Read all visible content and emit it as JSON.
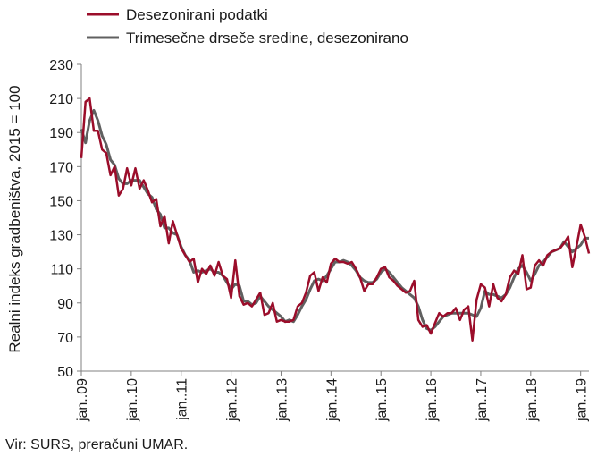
{
  "chart_data": {
    "type": "line",
    "ylabel": "Realni indeks gradbeništva, 2015 = 100",
    "ylim": [
      50,
      230
    ],
    "yticks": [
      50,
      70,
      90,
      110,
      130,
      150,
      170,
      190,
      210,
      230
    ],
    "xticks": [
      "jan..09",
      "jan..10",
      "jan..11",
      "jan..12",
      "jan..13",
      "jan..14",
      "jan..15",
      "jan..16",
      "jan..17",
      "jan..18",
      "jan..19"
    ],
    "start": "2009-01",
    "grid": false,
    "legend_position": "top-left",
    "series": [
      {
        "name": "Desezonirani podatki",
        "color": "#9b0d2a",
        "values": [
          175,
          208,
          210,
          191,
          191,
          180,
          178,
          165,
          170,
          153,
          157,
          169,
          159,
          169,
          157,
          162,
          156,
          149,
          151,
          135,
          141,
          125,
          138,
          130,
          122,
          118,
          114,
          116,
          102,
          110,
          107,
          112,
          106,
          114,
          106,
          104,
          93,
          115,
          94,
          89,
          90,
          88,
          92,
          96,
          83,
          84,
          90,
          79,
          80,
          79,
          79,
          80,
          88,
          90,
          96,
          106,
          108,
          97,
          105,
          102,
          113,
          116,
          114,
          114,
          113,
          114,
          110,
          105,
          97,
          101,
          101,
          105,
          110,
          111,
          105,
          103,
          100,
          98,
          96,
          97,
          103,
          80,
          76,
          77,
          72,
          78,
          84,
          82,
          84,
          84,
          87,
          80,
          86,
          88,
          68,
          92,
          101,
          99,
          88,
          101,
          93,
          91,
          95,
          105,
          109,
          107,
          118,
          98,
          99,
          112,
          115,
          112,
          118,
          120,
          121,
          122,
          125,
          129,
          111,
          123,
          136,
          129,
          119
        ],
        "text_color": "#1a1a1a"
      },
      {
        "name": "Trimesečne drseče sredine, desezonirano",
        "color": "#606060",
        "values": [
          192,
          184,
          197,
          203,
          197,
          188,
          183,
          174,
          171,
          163,
          160,
          160,
          162,
          162,
          162,
          158,
          154,
          152,
          145,
          142,
          134,
          134,
          131,
          130,
          123,
          118,
          115,
          108,
          109,
          108,
          109,
          110,
          108,
          108,
          106,
          102,
          98,
          101,
          100,
          91,
          91,
          89,
          90,
          94,
          91,
          88,
          86,
          84,
          82,
          79,
          80,
          79,
          83,
          88,
          92,
          98,
          103,
          104,
          103,
          106,
          110,
          114,
          114,
          115,
          114,
          112,
          109,
          105,
          103,
          102,
          102,
          104,
          108,
          110,
          108,
          105,
          102,
          99,
          97,
          95,
          93,
          88,
          80,
          75,
          74,
          76,
          79,
          82,
          83,
          84,
          84,
          84,
          84,
          84,
          83,
          82,
          87,
          97,
          95,
          95,
          94,
          93,
          95,
          99,
          105,
          110,
          112,
          108,
          103,
          107,
          112,
          114,
          117,
          120,
          121,
          122,
          126,
          123,
          120,
          122,
          124,
          128,
          128
        ],
        "text_color": "#1a1a1a"
      }
    ]
  },
  "source": "Vir: SURS, preračuni UMAR."
}
